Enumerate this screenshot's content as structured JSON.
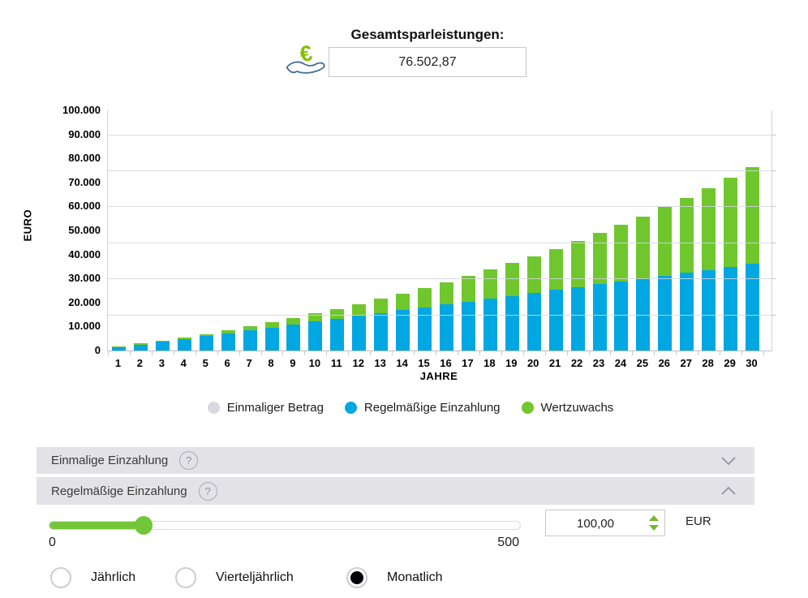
{
  "header": {
    "title": "Gesamtsparleistungen:",
    "total_value": "76.502,87",
    "icon": "euro-hand-icon"
  },
  "chart_data": {
    "type": "bar",
    "stacked": true,
    "title": "",
    "xlabel": "JAHRE",
    "ylabel": "EURO",
    "ylim": [
      0,
      100000
    ],
    "ytick_step": 10000,
    "gridline_step": 15000,
    "grid": true,
    "legend_position": "bottom",
    "categories": [
      1,
      2,
      3,
      4,
      5,
      6,
      7,
      8,
      9,
      10,
      11,
      12,
      13,
      14,
      15,
      16,
      17,
      18,
      19,
      20,
      21,
      22,
      23,
      24,
      25,
      26,
      27,
      28,
      29,
      30
    ],
    "series": [
      {
        "name": "Einmaliger Betrag",
        "color": "#d9d9de",
        "values": [
          0,
          0,
          0,
          0,
          0,
          0,
          0,
          0,
          0,
          0,
          0,
          0,
          0,
          0,
          0,
          0,
          0,
          0,
          0,
          0,
          0,
          0,
          0,
          0,
          0,
          0,
          0,
          0,
          0,
          0
        ]
      },
      {
        "name": "Regelmäßige Einzahlung",
        "color": "#00a7e1",
        "values": [
          1200,
          2400,
          3600,
          4800,
          6000,
          7200,
          8400,
          9600,
          10800,
          12000,
          13200,
          14400,
          15600,
          16800,
          18000,
          19200,
          20400,
          21600,
          22800,
          24000,
          25200,
          26400,
          27600,
          28800,
          30000,
          31200,
          32400,
          33600,
          34800,
          36000
        ]
      },
      {
        "name": "Wertzuwachs",
        "color": "#6fc72d",
        "values": [
          54.0,
          164.43,
          333.83,
          564.85,
          860.27,
          1223.05,
          1656.02,
          2162.87,
          2746.52,
          3410.08,
          4157.51,
          4992.9,
          5919.9,
          6942.2,
          8064.87,
          9292.05,
          10628.1,
          12078.28,
          13647.64,
          15341.78,
          17166.39,
          19127.1,
          21229.97,
          23481.59,
          25888.11,
          28456.92,
          31195.33,
          34107.97,
          37208.55,
          40502.87
        ]
      }
    ],
    "totals_note": "total year 30 = 76502.87 EUR"
  },
  "accordions": [
    {
      "label": "Einmalige Einzahlung",
      "help_glyph": "?",
      "state": "collapsed",
      "chevron": "down"
    },
    {
      "label": "Regelmäßige Einzahlung",
      "help_glyph": "?",
      "state": "expanded",
      "chevron": "up"
    }
  ],
  "regular_deposit_panel": {
    "slider": {
      "min": 0,
      "max": 500,
      "value": 100,
      "min_label": "0",
      "max_label": "500"
    },
    "amount_input": {
      "value": "100,00",
      "unit": "EUR"
    },
    "frequency_options": [
      {
        "label": "Jährlich",
        "selected": false
      },
      {
        "label": "Vierteljährlich",
        "selected": false
      },
      {
        "label": "Monatlich",
        "selected": true
      }
    ]
  },
  "colors": {
    "bar_blue": "#00a7e1",
    "bar_green": "#6fc72d",
    "legend_gray": "#d9d9de",
    "slider_green": "#72c637",
    "euro_symbol_green": "#84bd00",
    "hand_outline": "#44708e",
    "accordion_bg": "#e2e2e7",
    "gridline": "#d5d6e0"
  }
}
